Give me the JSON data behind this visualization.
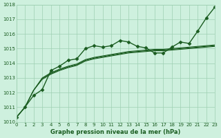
{
  "xlabel": "Graphe pression niveau de la mer (hPa)",
  "xlim": [
    0,
    23
  ],
  "ylim": [
    1010,
    1018
  ],
  "yticks": [
    1010,
    1011,
    1012,
    1013,
    1014,
    1015,
    1016,
    1017,
    1018
  ],
  "xticks": [
    0,
    1,
    2,
    3,
    4,
    5,
    6,
    7,
    8,
    9,
    10,
    11,
    12,
    13,
    14,
    15,
    16,
    17,
    18,
    19,
    20,
    21,
    22,
    23
  ],
  "background_color": "#cef0de",
  "grid_color": "#9ecfb2",
  "line_color": "#1a5c20",
  "series": [
    [
      1010.3,
      1011.0,
      1011.8,
      1012.2,
      1013.5,
      1013.8,
      1014.2,
      1014.3,
      1015.0,
      1015.2,
      1015.1,
      1015.2,
      1015.55,
      1015.45,
      1015.15,
      1015.05,
      1014.7,
      1014.7,
      1015.1,
      1015.45,
      1015.35,
      1016.2,
      1017.1,
      1017.85
    ],
    [
      1010.3,
      1011.0,
      1012.15,
      1012.9,
      1013.25,
      1013.5,
      1013.7,
      1013.85,
      1014.15,
      1014.3,
      1014.4,
      1014.5,
      1014.6,
      1014.7,
      1014.75,
      1014.8,
      1014.85,
      1014.85,
      1014.9,
      1014.95,
      1015.0,
      1015.05,
      1015.1,
      1015.15
    ],
    [
      1010.3,
      1011.0,
      1012.15,
      1012.95,
      1013.3,
      1013.55,
      1013.75,
      1013.9,
      1014.2,
      1014.35,
      1014.45,
      1014.55,
      1014.65,
      1014.75,
      1014.8,
      1014.85,
      1014.9,
      1014.9,
      1014.95,
      1015.0,
      1015.05,
      1015.1,
      1015.15,
      1015.2
    ],
    [
      1010.3,
      1011.0,
      1012.15,
      1013.0,
      1013.35,
      1013.6,
      1013.8,
      1013.95,
      1014.25,
      1014.4,
      1014.5,
      1014.6,
      1014.7,
      1014.8,
      1014.85,
      1014.9,
      1014.95,
      1014.95,
      1015.0,
      1015.05,
      1015.1,
      1015.15,
      1015.2,
      1015.25
    ]
  ],
  "marker_style": "D",
  "marker_size": 2.5,
  "linewidths": [
    1.0,
    0.8,
    0.8,
    0.8
  ]
}
